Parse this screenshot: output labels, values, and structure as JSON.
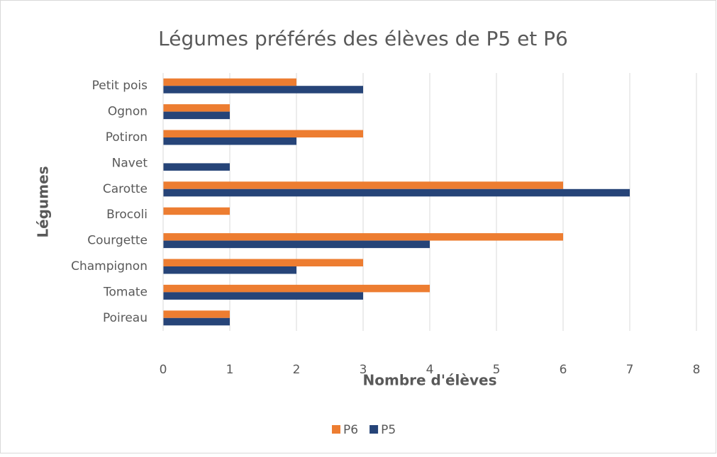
{
  "chart_data": {
    "type": "hbar",
    "title": "Légumes préférés des élèves de P5 et P6",
    "x_label": "Nombre d'élèves",
    "y_label": "Légumes",
    "categories": [
      "Poireau",
      "Tomate",
      "Champignon",
      "Courgette",
      "Brocoli",
      "Carotte",
      "Navet",
      "Potiron",
      "Ognon",
      "Petit pois"
    ],
    "series": [
      {
        "name": "P6",
        "color": "#ed7d31",
        "values": [
          1,
          4,
          3,
          6,
          1,
          6,
          0,
          3,
          1,
          2
        ]
      },
      {
        "name": "P5",
        "color": "#264478",
        "values": [
          1,
          3,
          2,
          4,
          0,
          7,
          1,
          2,
          1,
          3
        ]
      }
    ],
    "xlim": [
      0,
      8
    ],
    "xticks": [
      0,
      1,
      2,
      3,
      4,
      5,
      6,
      7,
      8
    ],
    "grid": true,
    "legend": "bottom"
  }
}
